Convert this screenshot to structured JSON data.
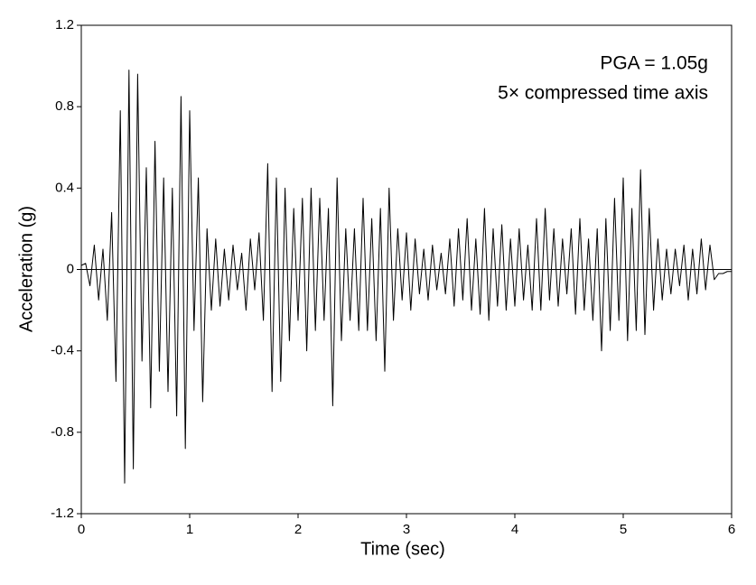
{
  "chart_data": {
    "type": "line",
    "xlabel": "Time (sec)",
    "ylabel": "Acceleration (g)",
    "annotations": [
      "PGA = 1.05g",
      "5× compressed time axis"
    ],
    "x": [
      0,
      0.04,
      0.08,
      0.12,
      0.16,
      0.2,
      0.24,
      0.28,
      0.32,
      0.36,
      0.4,
      0.44,
      0.48,
      0.52,
      0.56,
      0.6,
      0.64,
      0.68,
      0.72,
      0.76,
      0.8,
      0.84,
      0.88,
      0.92,
      0.96,
      1.0,
      1.04,
      1.08,
      1.12,
      1.16,
      1.2,
      1.24,
      1.28,
      1.32,
      1.36,
      1.4,
      1.44,
      1.48,
      1.52,
      1.56,
      1.6,
      1.64,
      1.68,
      1.72,
      1.76,
      1.8,
      1.84,
      1.88,
      1.92,
      1.96,
      2.0,
      2.04,
      2.08,
      2.12,
      2.16,
      2.2,
      2.24,
      2.28,
      2.32,
      2.36,
      2.4,
      2.44,
      2.48,
      2.52,
      2.56,
      2.6,
      2.64,
      2.68,
      2.72,
      2.76,
      2.8,
      2.84,
      2.88,
      2.92,
      2.96,
      3.0,
      3.04,
      3.08,
      3.12,
      3.16,
      3.2,
      3.24,
      3.28,
      3.32,
      3.36,
      3.4,
      3.44,
      3.48,
      3.52,
      3.56,
      3.6,
      3.64,
      3.68,
      3.72,
      3.76,
      3.8,
      3.84,
      3.88,
      3.92,
      3.96,
      4.0,
      4.04,
      4.08,
      4.12,
      4.16,
      4.2,
      4.24,
      4.28,
      4.32,
      4.36,
      4.4,
      4.44,
      4.48,
      4.52,
      4.56,
      4.6,
      4.64,
      4.68,
      4.72,
      4.76,
      4.8,
      4.84,
      4.88,
      4.92,
      4.96,
      5.0,
      5.04,
      5.08,
      5.12,
      5.16,
      5.2,
      5.24,
      5.28,
      5.32,
      5.36,
      5.4,
      5.44,
      5.48,
      5.52,
      5.56,
      5.6,
      5.64,
      5.68,
      5.72,
      5.76,
      5.8,
      5.84,
      5.88,
      5.92,
      5.96,
      6.0
    ],
    "series": [
      {
        "color": "#000000",
        "values": [
          0.02,
          0.03,
          -0.08,
          0.12,
          -0.15,
          0.1,
          -0.25,
          0.28,
          -0.55,
          0.78,
          -1.05,
          0.98,
          -0.98,
          0.96,
          -0.45,
          0.5,
          -0.68,
          0.63,
          -0.5,
          0.45,
          -0.6,
          0.4,
          -0.72,
          0.85,
          -0.88,
          0.78,
          -0.3,
          0.45,
          -0.65,
          0.2,
          -0.2,
          0.15,
          -0.18,
          0.1,
          -0.15,
          0.12,
          -0.1,
          0.08,
          -0.2,
          0.15,
          -0.1,
          0.18,
          -0.25,
          0.52,
          -0.6,
          0.45,
          -0.55,
          0.4,
          -0.35,
          0.3,
          -0.25,
          0.35,
          -0.4,
          0.4,
          -0.3,
          0.35,
          -0.25,
          0.3,
          -0.67,
          0.45,
          -0.35,
          0.2,
          -0.25,
          0.2,
          -0.3,
          0.35,
          -0.3,
          0.25,
          -0.35,
          0.3,
          -0.5,
          0.4,
          -0.25,
          0.2,
          -0.15,
          0.18,
          -0.2,
          0.15,
          -0.12,
          0.1,
          -0.15,
          0.12,
          -0.1,
          0.08,
          -0.12,
          0.15,
          -0.18,
          0.2,
          -0.15,
          0.25,
          -0.2,
          0.15,
          -0.22,
          0.3,
          -0.25,
          0.2,
          -0.18,
          0.22,
          -0.2,
          0.15,
          -0.18,
          0.2,
          -0.15,
          0.12,
          -0.2,
          0.25,
          -0.2,
          0.3,
          -0.15,
          0.2,
          -0.18,
          0.15,
          -0.12,
          0.2,
          -0.22,
          0.25,
          -0.2,
          0.15,
          -0.25,
          0.2,
          -0.4,
          0.25,
          -0.3,
          0.35,
          -0.25,
          0.45,
          -0.35,
          0.3,
          -0.3,
          0.49,
          -0.32,
          0.3,
          -0.2,
          0.15,
          -0.15,
          0.1,
          -0.12,
          0.1,
          -0.08,
          0.12,
          -0.15,
          0.1,
          -0.12,
          0.15,
          -0.1,
          0.12,
          -0.05,
          -0.02,
          -0.02,
          -0.01,
          -0.01
        ]
      }
    ],
    "xlim": [
      0,
      6
    ],
    "xticks": [
      0,
      1,
      2,
      3,
      4,
      5,
      6
    ],
    "ylim": [
      -1.2,
      1.2
    ],
    "yticks": [
      1.2,
      0.8,
      0.4,
      0,
      -0.4,
      -0.8,
      -1.2
    ],
    "zero_line": true
  }
}
